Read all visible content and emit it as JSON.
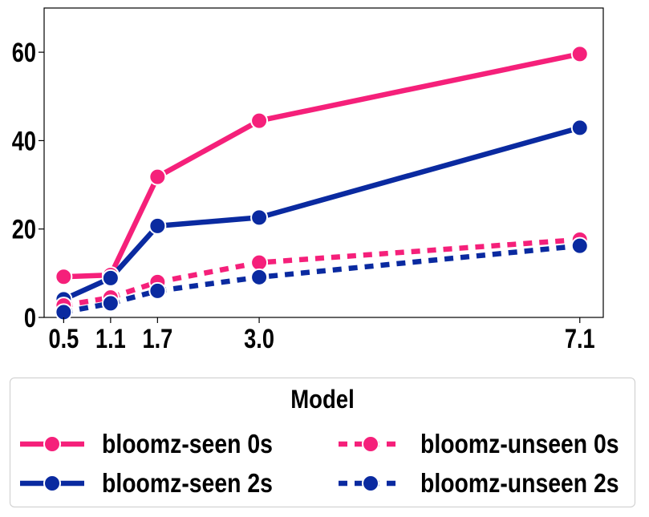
{
  "chart_data": {
    "type": "line",
    "x": [
      0.5,
      1.1,
      1.7,
      3.0,
      7.1
    ],
    "x_tick_labels": [
      "0.5",
      "1.1",
      "1.7",
      "3.0",
      "7.1"
    ],
    "y_ticks": [
      0,
      20,
      40,
      60
    ],
    "y_tick_labels": [
      "0",
      "20",
      "40",
      "60"
    ],
    "xlim": [
      0.25,
      7.4
    ],
    "ylim": [
      0,
      70
    ],
    "grid": false,
    "title": "",
    "xlabel": "",
    "ylabel": "",
    "series": [
      {
        "name": "bloomz-seen 0s",
        "values": [
          9.2,
          9.6,
          31.8,
          44.5,
          59.6
        ],
        "color": "#f5207a",
        "dash": "solid"
      },
      {
        "name": "bloomz-seen 2s",
        "values": [
          4.1,
          8.9,
          20.7,
          22.6,
          42.9
        ],
        "color": "#0a2aa0",
        "dash": "dotted"
      },
      {
        "name": "bloomz-unseen 0s",
        "values": [
          2.7,
          4.5,
          8.0,
          12.4,
          17.6
        ],
        "color": "#f5207a",
        "dash": "dotted"
      },
      {
        "name": "bloomz-unseen 2s",
        "values": [
          1.2,
          3.2,
          6.0,
          9.1,
          16.2
        ],
        "color": "#0a2aa0",
        "dash": "dotted"
      }
    ],
    "legend": {
      "title": "Model",
      "placement": "bottom-outside",
      "columns": 2
    }
  }
}
